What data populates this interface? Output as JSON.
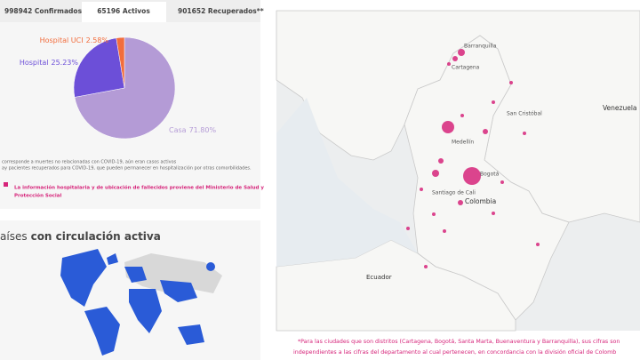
{
  "tabs": [
    "998942 Confirmados",
    "65196 Activos",
    "901652 Recuperados**"
  ],
  "pie": {
    "type": "pie",
    "slices": [
      {
        "name": "Casa",
        "value": 71.8,
        "value_label": "71.80%",
        "color": "#b49bd6"
      },
      {
        "name": "Hospital",
        "value": 25.23,
        "value_label": "25.23%",
        "color": "#6c4fd8"
      },
      {
        "name": "Hospital UCI",
        "value": 2.58,
        "value_label": "2.58%",
        "color": "#f26d3d"
      }
    ]
  },
  "notes": [
    "corresponde a muertes no relacionadas con COVID-19, aún eran casos activos",
    "ay pacientes recuperados para COVID-19, que pueden permanecer en hospitalización por otras comorbilidades."
  ],
  "source_note": [
    "La información hospitalaria y de ubicación de fallecidos proviene del Ministerio de Salud y",
    "Protección Social"
  ],
  "world": {
    "title_light": "aíses",
    "title_bold": "con circulación activa"
  },
  "map": {
    "labels": [
      "Barranquilla",
      "Cartagena",
      "Venezuela",
      "Medellín",
      "Bogotá",
      "Santiago de Cali",
      "Colombia",
      "Ecuador",
      "San Cristóbal"
    ],
    "footnote": [
      "*Para las ciudades que son distritos (Cartagena, Bogotá, Santa Marta, Buenaventura y Barranquilla), sus cifras son",
      "independientes a las cifras del departamento al cual pertenecen, en concordancia con la división oficial de Colomb"
    ]
  }
}
